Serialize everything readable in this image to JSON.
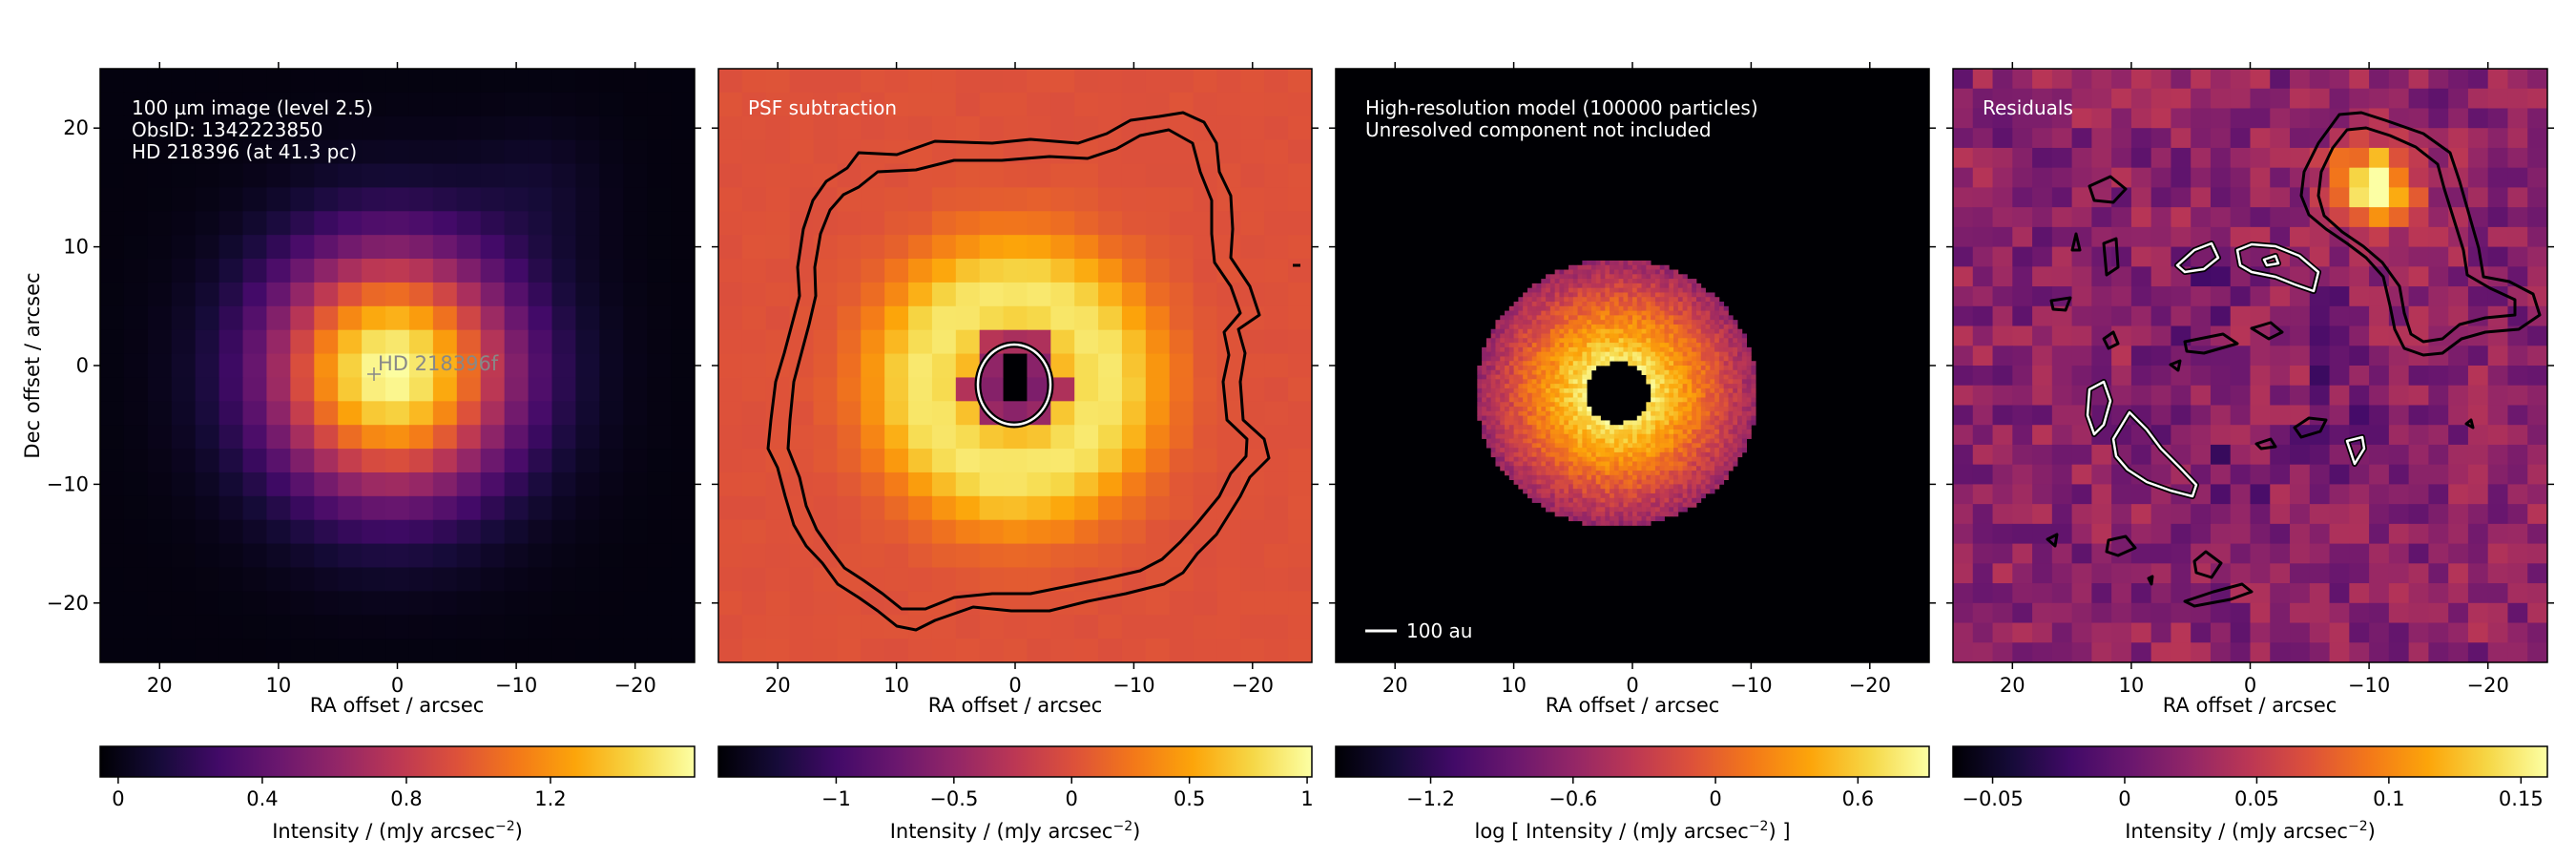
{
  "chart_data": [
    {
      "type": "heatmap",
      "annotations": [
        "100 µm image (level 2.5)",
        "ObsID: 1342223850",
        "HD 218396 (at 41.3 pc)"
      ],
      "star_label": "HD 218396f",
      "xlabel": "RA offset / arcsec",
      "ylabel": "Dec offset / arcsec",
      "x_ticks": [
        20,
        10,
        0,
        -10,
        -20
      ],
      "y_ticks": [
        20,
        10,
        0,
        -10,
        -20
      ],
      "xlim": [
        25,
        -25
      ],
      "ylim": [
        -25,
        25
      ],
      "colormap": "inferno",
      "colorbar": {
        "label": "Intensity / (mJy arcsec$^{-2}$)",
        "ticks": [
          "0",
          "0.4",
          "0.8",
          "1.2"
        ],
        "tick_values": [
          0,
          0.4,
          0.8,
          1.2
        ],
        "range": [
          -0.05,
          1.6
        ]
      }
    },
    {
      "type": "heatmap",
      "annotations": [
        "PSF subtraction"
      ],
      "xlabel": "RA offset / arcsec",
      "x_ticks": [
        20,
        10,
        0,
        -10,
        -20
      ],
      "y_ticks": [
        20,
        10,
        0,
        -10,
        -20
      ],
      "xlim": [
        25,
        -25
      ],
      "ylim": [
        -25,
        25
      ],
      "colormap": "inferno",
      "contour_colors": [
        "#000000",
        "#ffffff"
      ],
      "colorbar": {
        "label": "Intensity / (mJy arcsec$^{-2}$)",
        "ticks": [
          "-1",
          "-0.5",
          "0",
          "0.5",
          "1"
        ],
        "tick_values": [
          -1,
          -0.5,
          0,
          0.5,
          1
        ],
        "range": [
          -1.5,
          1.02
        ]
      }
    },
    {
      "type": "heatmap",
      "annotations": [
        "High-resolution model (100000 particles)",
        "Unresolved component not included"
      ],
      "scalebar_label": "100 au",
      "xlabel": "RA offset / arcsec",
      "x_ticks": [
        20,
        10,
        0,
        -10,
        -20
      ],
      "y_ticks": [
        20,
        10,
        0,
        -10,
        -20
      ],
      "xlim": [
        25,
        -25
      ],
      "ylim": [
        -25,
        25
      ],
      "colormap": "inferno",
      "colorbar": {
        "label": "log [ Intensity / (mJy arcsec$^{-2}$) ]",
        "ticks": [
          "-1.2",
          "-0.6",
          "0",
          "0.6"
        ],
        "tick_values": [
          -1.2,
          -0.6,
          0,
          0.6
        ],
        "range": [
          -1.6,
          0.9
        ]
      }
    },
    {
      "type": "heatmap",
      "annotations": [
        "Residuals"
      ],
      "xlabel": "RA offset / arcsec",
      "x_ticks": [
        20,
        10,
        0,
        -10,
        -20
      ],
      "y_ticks": [
        20,
        10,
        0,
        -10,
        -20
      ],
      "xlim": [
        25,
        -25
      ],
      "ylim": [
        -25,
        25
      ],
      "colormap": "inferno",
      "contour_colors": [
        "#000000",
        "#ffffff"
      ],
      "colorbar": {
        "label": "Intensity / (mJy arcsec$^{-2}$)",
        "ticks": [
          "-0.05",
          "0",
          "0.05",
          "0.1",
          "0.15"
        ],
        "tick_values": [
          -0.05,
          0,
          0.05,
          0.1,
          0.15
        ],
        "range": [
          -0.065,
          0.16
        ]
      }
    }
  ]
}
